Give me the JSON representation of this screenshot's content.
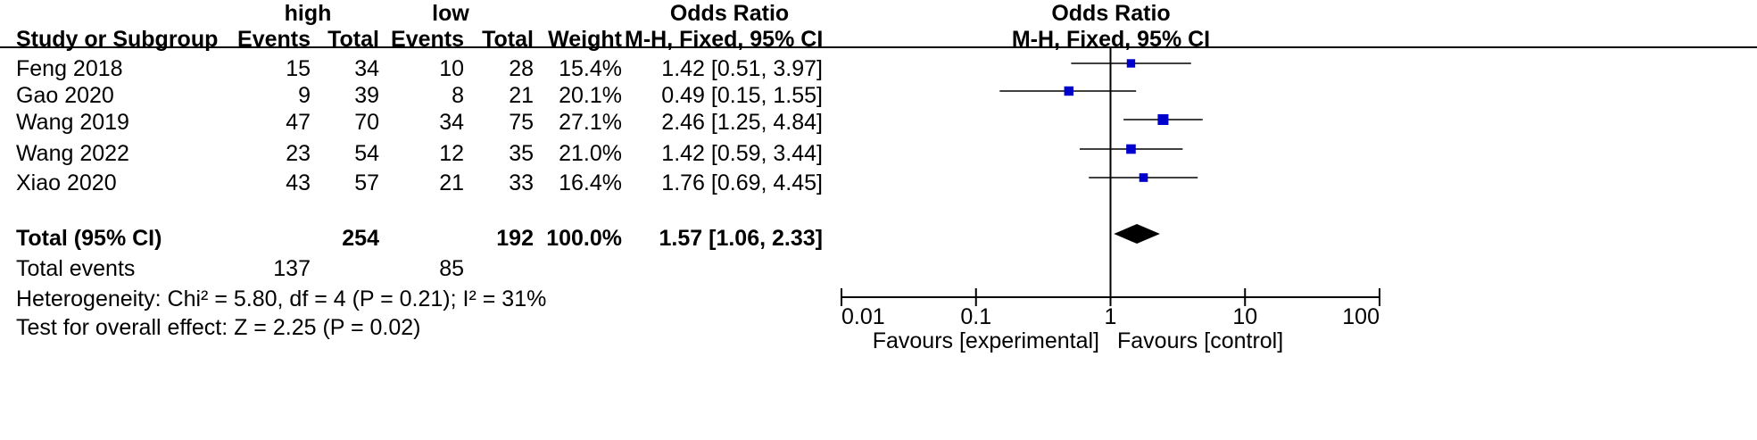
{
  "headers": {
    "group1": "high",
    "group2": "low",
    "left_or": "Odds Ratio",
    "right_or": "Odds Ratio",
    "study": "Study or Subgroup",
    "events1": "Events",
    "total1": "Total",
    "events2": "Events",
    "total2": "Total",
    "weight": "Weight",
    "method_left": "M-H, Fixed, 95% CI",
    "method_right": "M-H, Fixed, 95% CI"
  },
  "rows": [
    {
      "study": "Feng 2018",
      "events1": "15",
      "total1": "34",
      "events2": "10",
      "total2": "28",
      "weight": "15.4%",
      "ci": "1.42 [0.51, 3.97]"
    },
    {
      "study": "Gao 2020",
      "events1": "9",
      "total1": "39",
      "events2": "8",
      "total2": "21",
      "weight": "20.1%",
      "ci": "0.49 [0.15, 1.55]"
    },
    {
      "study": "Wang 2019",
      "events1": "47",
      "total1": "70",
      "events2": "34",
      "total2": "75",
      "weight": "27.1%",
      "ci": "2.46 [1.25, 4.84]"
    },
    {
      "study": "Wang 2022",
      "events1": "23",
      "total1": "54",
      "events2": "12",
      "total2": "35",
      "weight": "21.0%",
      "ci": "1.42 [0.59, 3.44]"
    },
    {
      "study": "Xiao 2020",
      "events1": "43",
      "total1": "57",
      "events2": "21",
      "total2": "33",
      "weight": "16.4%",
      "ci": "1.76 [0.69, 4.45]"
    }
  ],
  "total": {
    "label": "Total (95% CI)",
    "total1": "254",
    "total2": "192",
    "weight": "100.0%",
    "ci": "1.57 [1.06, 2.33]"
  },
  "total_events": {
    "label": "Total events",
    "events1": "137",
    "events2": "85"
  },
  "heterogeneity": "Heterogeneity: Chi² = 5.80, df = 4 (P = 0.21); I² = 31%",
  "overall_effect": "Test for overall effect: Z = 2.25 (P = 0.02)",
  "axis": {
    "ticks": [
      "0.01",
      "0.1",
      "1",
      "10",
      "100"
    ],
    "favours_left": "Favours [experimental]",
    "favours_right": "Favours [control]"
  },
  "colors": {
    "marker": "#0000cc",
    "diamond": "#000000"
  },
  "chart_data": {
    "type": "scatter",
    "subtype": "forest plot",
    "title": "Odds Ratio",
    "xlabel": "M-H, Fixed, 95% CI",
    "x_scale": "log",
    "xlim": [
      0.01,
      100
    ],
    "reference_line": 1,
    "categories": [
      "Feng 2018",
      "Gao 2020",
      "Wang 2019",
      "Wang 2022",
      "Xiao 2020"
    ],
    "series": [
      {
        "or": [
          1.42,
          0.49,
          2.46,
          1.42,
          1.76
        ],
        "lower": [
          0.51,
          0.15,
          1.25,
          0.59,
          0.69
        ],
        "upper": [
          3.97,
          1.55,
          4.84,
          3.44,
          4.45
        ],
        "weight_percent": [
          15.4,
          20.1,
          27.1,
          21.0,
          16.4
        ]
      }
    ],
    "pooled": {
      "or": 1.57,
      "lower": 1.06,
      "upper": 2.33
    }
  }
}
